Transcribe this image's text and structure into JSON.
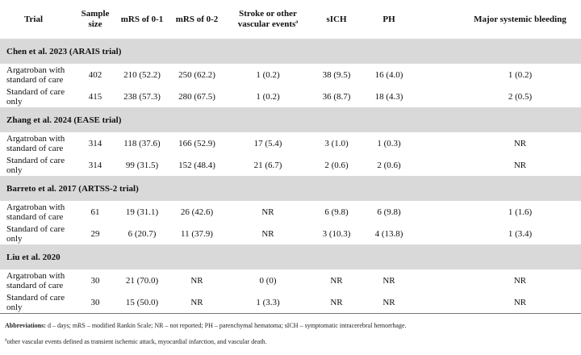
{
  "headers": [
    "Trial",
    "Sample size",
    "mRS of 0-1",
    "mRS of 0-2",
    "Stroke or other vascular events",
    "sICH",
    "PH",
    "Major systemic bleeding"
  ],
  "header_sup": "a",
  "sections": [
    {
      "title": "Chen et al. 2023 (ARAIS trial)",
      "rows": [
        [
          "Argatroban with standard of care",
          "402",
          "210 (52.2)",
          "250 (62.2)",
          "1 (0.2)",
          "38 (9.5)",
          "16 (4.0)",
          "1 (0.2)"
        ],
        [
          "Standard of care only",
          "415",
          "238 (57.3)",
          "280 (67.5)",
          "1 (0.2)",
          "36 (8.7)",
          "18 (4.3)",
          "2 (0.5)"
        ]
      ]
    },
    {
      "title": "Zhang et al. 2024 (EASE trial)",
      "rows": [
        [
          "Argatroban with standard of care",
          "314",
          "118 (37.6)",
          "166 (52.9)",
          "17 (5.4)",
          "3 (1.0)",
          "1 (0.3)",
          "NR"
        ],
        [
          "Standard of care only",
          "314",
          "99 (31.5)",
          "152 (48.4)",
          "21 (6.7)",
          "2 (0.6)",
          "2 (0.6)",
          "NR"
        ]
      ]
    },
    {
      "title": "Barreto et al. 2017 (ARTSS-2 trial)",
      "rows": [
        [
          "Argatroban with standard of care",
          "61",
          "19 (31.1)",
          "26 (42.6)",
          "NR",
          "6 (9.8)",
          "6 (9.8)",
          "1 (1.6)"
        ],
        [
          "Standard of care only",
          "29",
          "6 (20.7)",
          "11 (37.9)",
          "NR",
          "3 (10.3)",
          "4 (13.8)",
          "1 (3.4)"
        ]
      ]
    },
    {
      "title": "Liu et al. 2020",
      "rows": [
        [
          "Argatroban with standard of care",
          "30",
          "21 (70.0)",
          "NR",
          "0 (0)",
          "NR",
          "NR",
          "NR"
        ],
        [
          "Standard of care only",
          "30",
          "15 (50.0)",
          "NR",
          "1 (3.3)",
          "NR",
          "NR",
          "NR"
        ]
      ]
    }
  ],
  "notes": {
    "abbrev_label": "Abbreviations:",
    "abbrev_text": " d – days; mRS – modified Rankin Scale; NR – not reported; PH – parenchymal hematoma; sICH – symptomatic intracerebral hemorrhage.",
    "footnote_sup": "a",
    "footnote_text": "other vascular events defined as transient ischemic attack, myocardial infarction, and vascular death."
  }
}
